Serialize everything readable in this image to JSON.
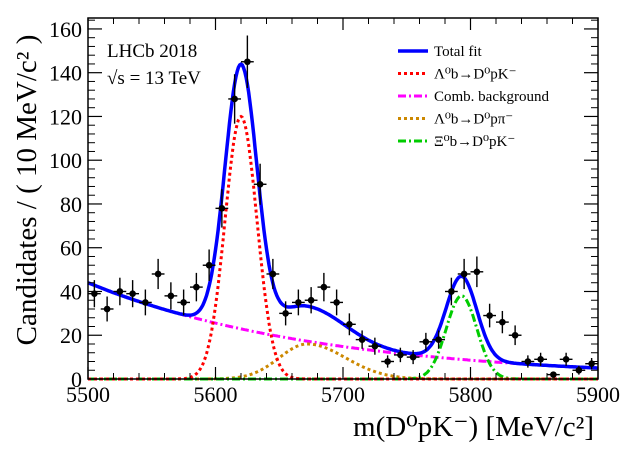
{
  "chart_data": {
    "type": "scatter",
    "title": "",
    "xlabel": "m(D⁰pK⁻) [MeV/c²]",
    "ylabel": "Candidates / ( 10 MeV/c² )",
    "xlim": [
      5500,
      5900
    ],
    "ylim": [
      0,
      165
    ],
    "xticks": [
      5500,
      5600,
      5700,
      5800,
      5900
    ],
    "yticks": [
      0,
      20,
      40,
      60,
      80,
      100,
      120,
      140,
      160
    ],
    "annotations": [
      "LHCb 2018",
      "√s = 13 TeV"
    ],
    "legend": [
      {
        "label": "Total fit",
        "color": "#0000ff",
        "style": "solid"
      },
      {
        "label": "Λ⁰b→D⁰pK⁻",
        "color": "#ff0000",
        "style": "dotted"
      },
      {
        "label": "Comb. background",
        "color": "#ff00ff",
        "style": "dashdot"
      },
      {
        "label": "Λ⁰b→D⁰pπ⁻",
        "color": "#cc8800",
        "style": "dotted"
      },
      {
        "label": "Ξ⁰b→D⁰pK⁻",
        "color": "#00cc00",
        "style": "dashdot"
      }
    ],
    "data_points": {
      "x": [
        5505,
        5515,
        5525,
        5535,
        5545,
        5555,
        5565,
        5575,
        5585,
        5595,
        5605,
        5615,
        5625,
        5635,
        5645,
        5655,
        5665,
        5675,
        5685,
        5695,
        5705,
        5715,
        5725,
        5735,
        5745,
        5755,
        5765,
        5775,
        5785,
        5795,
        5805,
        5815,
        5825,
        5835,
        5845,
        5855,
        5865,
        5875,
        5885,
        5895
      ],
      "y": [
        39,
        32,
        40,
        39,
        35,
        48,
        38,
        35,
        42,
        52,
        78,
        128,
        145,
        89,
        48,
        30,
        35,
        36,
        42,
        35,
        25,
        18,
        15,
        8,
        11,
        10,
        17,
        18,
        40,
        48,
        49,
        29,
        26,
        20,
        8,
        9,
        2,
        9,
        4,
        7
      ],
      "yerr": [
        6.2,
        5.7,
        6.3,
        6.2,
        5.9,
        6.9,
        6.2,
        5.9,
        6.5,
        7.2,
        8.8,
        11.3,
        12.0,
        9.4,
        6.9,
        5.5,
        5.9,
        6.0,
        6.5,
        5.9,
        5.0,
        4.2,
        3.9,
        2.8,
        3.3,
        3.2,
        4.1,
        4.2,
        6.3,
        6.9,
        7.0,
        5.4,
        5.1,
        4.5,
        2.8,
        3.0,
        1.4,
        3.0,
        2.0,
        2.6
      ],
      "xerr": 5
    },
    "components": {
      "signal": {
        "peak": 5620,
        "sigma": 12.5,
        "amplitude": 120
      },
      "comb_background": {
        "at_5500": 44,
        "at_5900": 5
      },
      "pi_reflection": {
        "peak": 5672,
        "amplitude": 16,
        "sigma_low": 22,
        "sigma_high": 30
      },
      "xi_b": {
        "peak": 5793,
        "sigma": 12,
        "amplitude": 38
      }
    }
  }
}
